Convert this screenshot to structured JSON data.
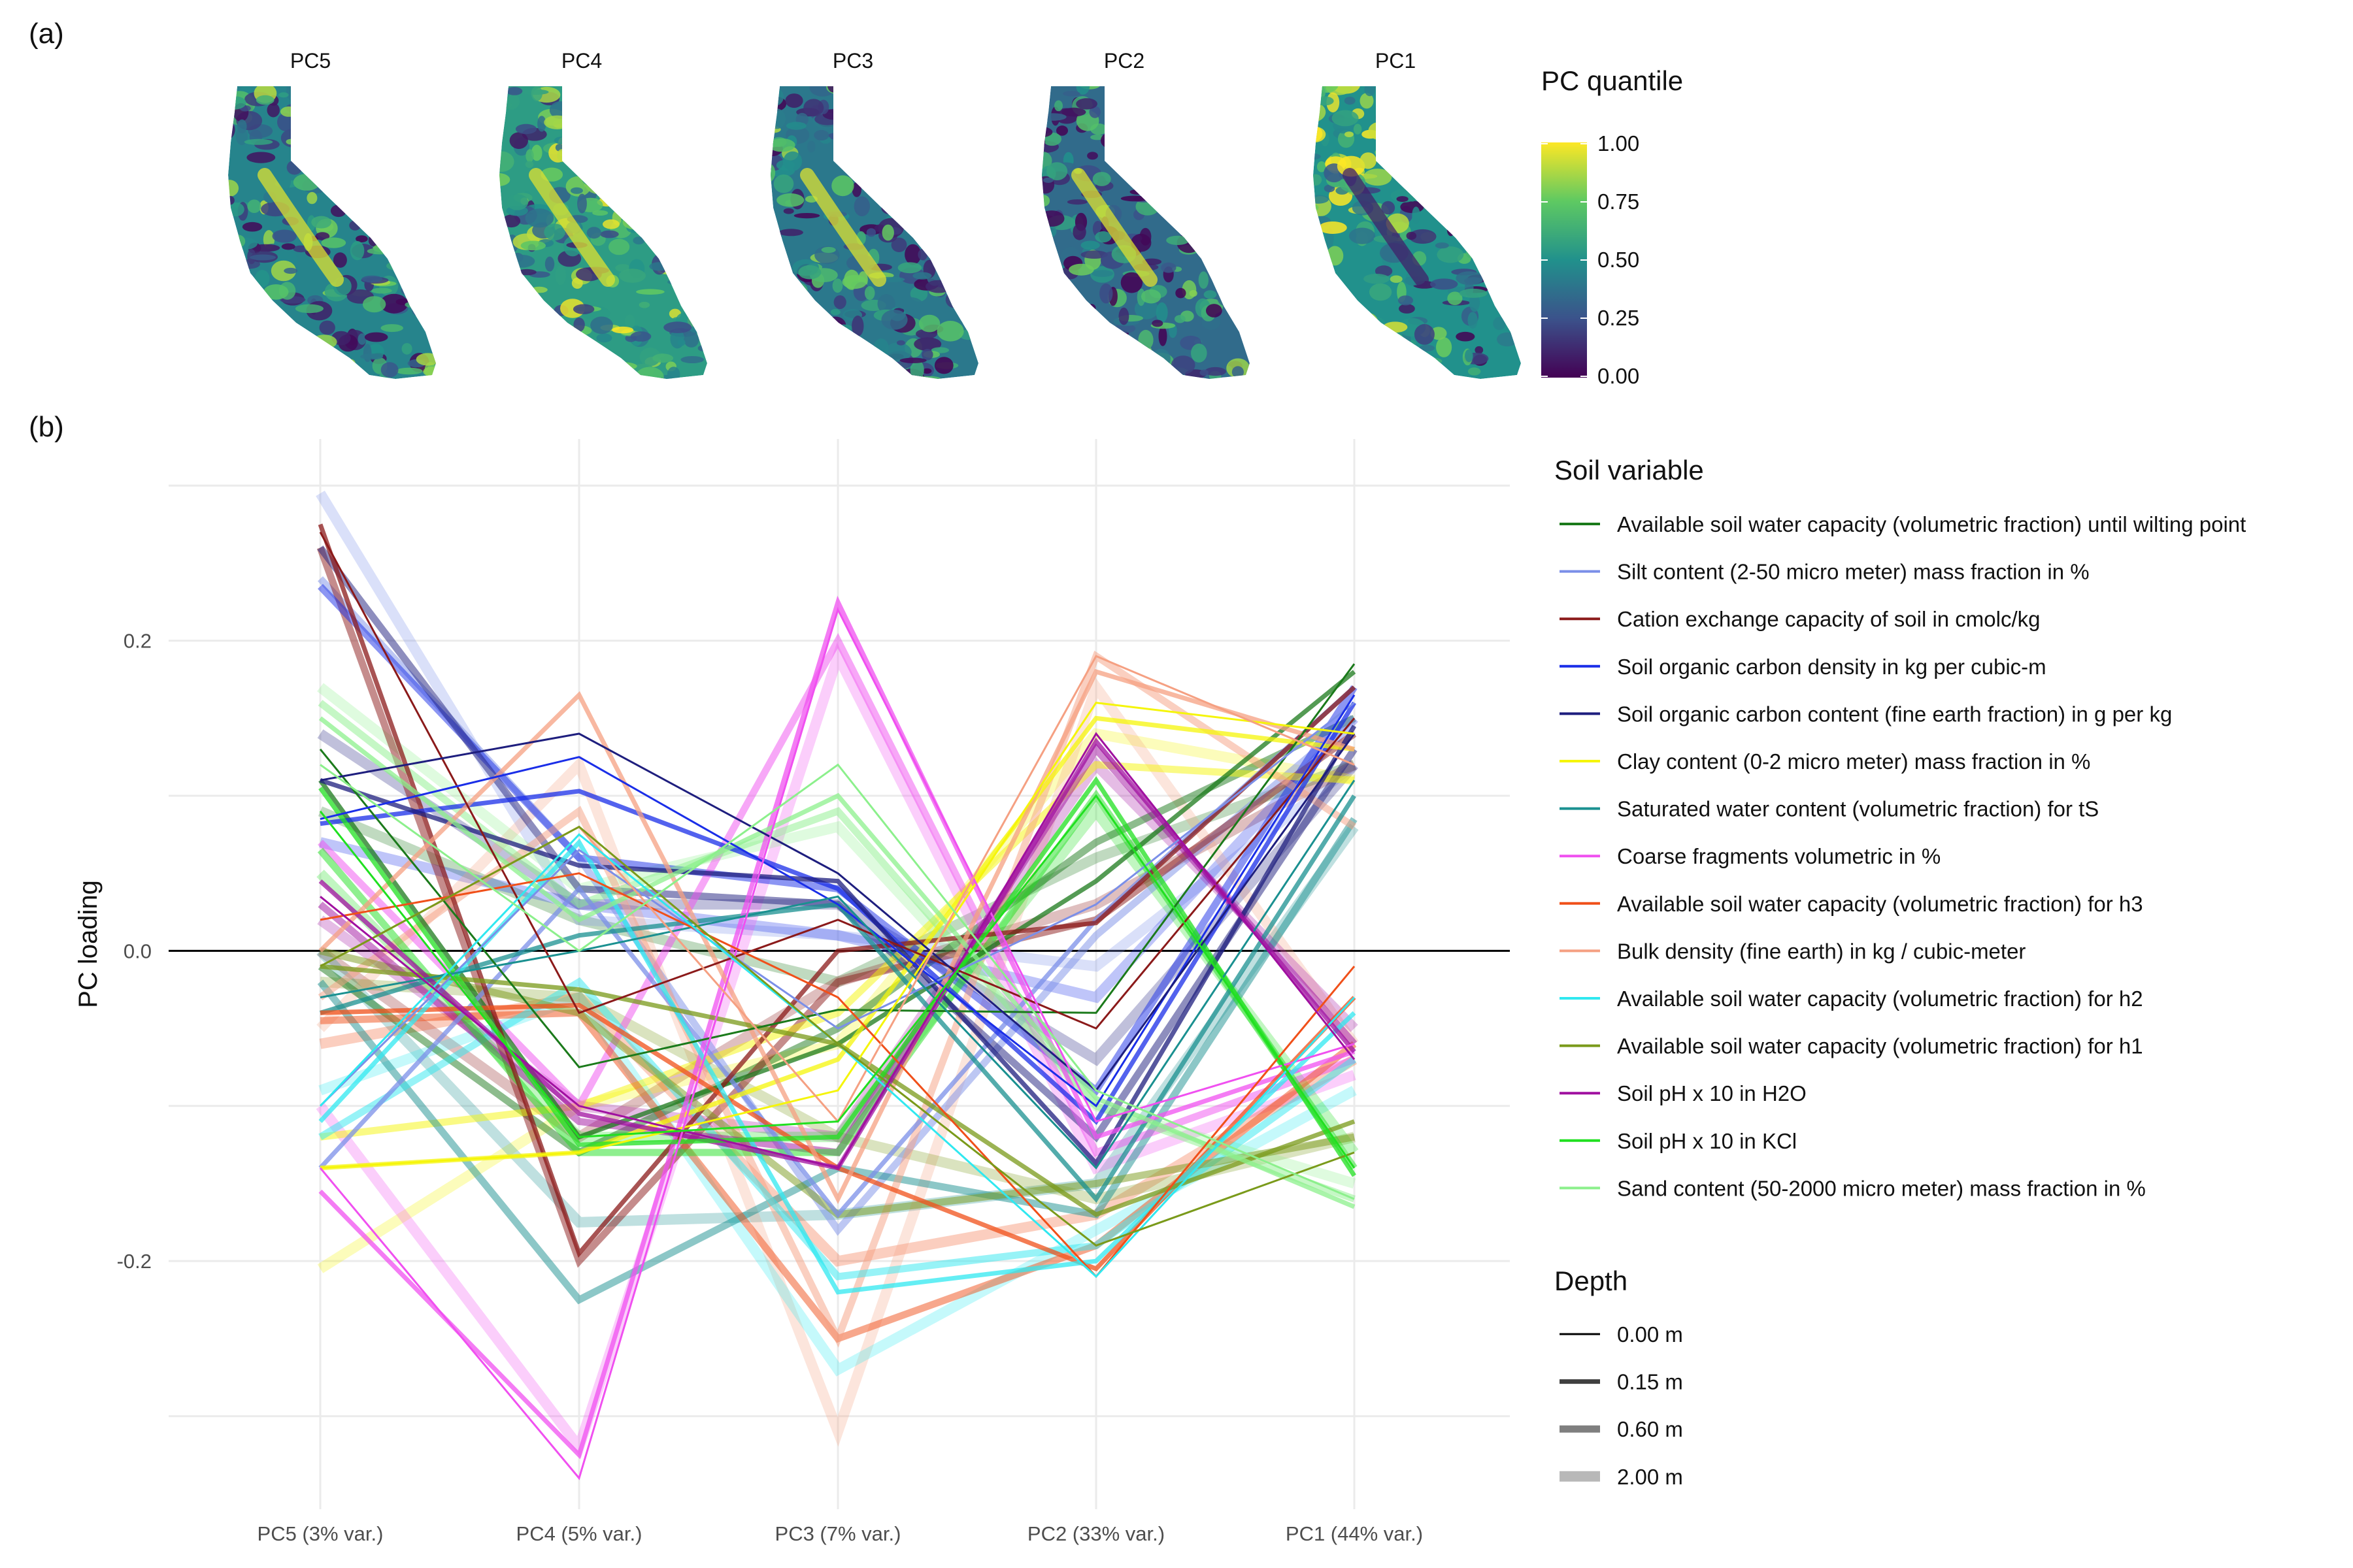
{
  "panel_labels": [
    "(a)",
    "(b)"
  ],
  "maps": {
    "panels": [
      "PC5",
      "PC4",
      "PC3",
      "PC2",
      "PC1"
    ],
    "legend": {
      "title": "PC quantile",
      "ticks": [
        "1.00",
        "0.75",
        "0.50",
        "0.25",
        "0.00"
      ],
      "colors": [
        "#fde725",
        "#5ec962",
        "#21918c",
        "#3b528b",
        "#440154"
      ]
    }
  },
  "chart_data": {
    "type": "line",
    "title": "",
    "xlabel": "",
    "ylabel": "PC loading",
    "categories": [
      "PC5 (3% var.)",
      "PC4 (5% var.)",
      "PC3 (7% var.)",
      "PC2 (33% var.)",
      "PC1 (44% var.)"
    ],
    "ylim": [
      -0.36,
      0.33
    ],
    "yticks": [
      0.2,
      0.0,
      -0.2
    ],
    "ytick_labels": [
      "0.2",
      "0.0",
      "-0.2"
    ],
    "hline": 0,
    "grid": true,
    "legend_placement": "right",
    "color_legend_title": "Soil variable",
    "depth_legend_title": "Depth",
    "variables": [
      {
        "name": "Available soil water capacity (volumetric fraction) until wilting point",
        "color": "#1b7a1b"
      },
      {
        "name": "Silt content (2-50 micro meter) mass fraction in %",
        "color": "#7b8fe8"
      },
      {
        "name": "Cation exchange capacity of soil in cmolc/kg",
        "color": "#8b1a1a"
      },
      {
        "name": "Soil organic carbon density in kg per cubic-m",
        "color": "#1a2ee8"
      },
      {
        "name": "Soil organic carbon content (fine earth fraction) in g per kg",
        "color": "#1e1e7e"
      },
      {
        "name": "Clay content (0-2 micro meter) mass fraction in %",
        "color": "#f5f50a"
      },
      {
        "name": "Saturated water content (volumetric fraction) for tS",
        "color": "#1a9090"
      },
      {
        "name": "Coarse fragments volumetric in %",
        "color": "#f050f0"
      },
      {
        "name": "Available soil water capacity (volumetric fraction) for h3",
        "color": "#f0501a"
      },
      {
        "name": "Bulk density (fine earth) in kg / cubic-meter",
        "color": "#f5a082"
      },
      {
        "name": "Available soil water capacity (volumetric fraction) for h2",
        "color": "#30e8f0"
      },
      {
        "name": "Available soil water capacity (volumetric fraction) for h1",
        "color": "#7a9a1a"
      },
      {
        "name": "Soil pH x 10 in H2O",
        "color": "#a010a0"
      },
      {
        "name": "Soil pH x 10 in KCl",
        "color": "#20e020"
      },
      {
        "name": "Sand content (50-2000 micro meter) mass fraction in %",
        "color": "#8cf08c"
      }
    ],
    "depths": [
      {
        "label": "0.00 m",
        "width": 3,
        "opacity": 1.0
      },
      {
        "label": "0.15 m",
        "width": 7,
        "opacity": 0.75
      },
      {
        "label": "0.60 m",
        "width": 11,
        "opacity": 0.5
      },
      {
        "label": "2.00 m",
        "width": 16,
        "opacity": 0.28
      }
    ],
    "series": [
      {
        "variable": 0,
        "depth": 0,
        "values": [
          0.13,
          -0.075,
          -0.038,
          -0.04,
          0.185
        ]
      },
      {
        "variable": 0,
        "depth": 1,
        "values": [
          0.11,
          -0.12,
          -0.06,
          0.045,
          0.18
        ]
      },
      {
        "variable": 0,
        "depth": 2,
        "values": [
          -0.01,
          -0.13,
          -0.05,
          0.07,
          0.15
        ]
      },
      {
        "variable": 0,
        "depth": 3,
        "values": [
          0.09,
          0.02,
          -0.02,
          0.06,
          0.12
        ]
      },
      {
        "variable": 1,
        "depth": 0,
        "values": [
          -0.1,
          0.065,
          -0.05,
          0.03,
          0.16
        ]
      },
      {
        "variable": 1,
        "depth": 1,
        "values": [
          -0.14,
          0.04,
          -0.17,
          0.02,
          0.17
        ]
      },
      {
        "variable": 1,
        "depth": 2,
        "values": [
          0.24,
          0.06,
          -0.18,
          0.01,
          0.15
        ]
      },
      {
        "variable": 1,
        "depth": 3,
        "values": [
          0.295,
          0.02,
          0.01,
          -0.01,
          0.12
        ]
      },
      {
        "variable": 2,
        "depth": 0,
        "values": [
          0.27,
          -0.04,
          0.02,
          -0.05,
          0.15
        ]
      },
      {
        "variable": 2,
        "depth": 1,
        "values": [
          0.275,
          -0.195,
          0.0,
          0.018,
          0.17
        ]
      },
      {
        "variable": 2,
        "depth": 2,
        "values": [
          0.26,
          -0.2,
          -0.02,
          0.02,
          0.14
        ]
      },
      {
        "variable": 2,
        "depth": 3,
        "values": [
          0.0,
          -0.12,
          -0.02,
          0.03,
          0.12
        ]
      },
      {
        "variable": 3,
        "depth": 0,
        "values": [
          0.085,
          0.125,
          0.03,
          -0.1,
          0.165
        ]
      },
      {
        "variable": 3,
        "depth": 1,
        "values": [
          0.082,
          0.103,
          0.04,
          -0.11,
          0.16
        ]
      },
      {
        "variable": 3,
        "depth": 2,
        "values": [
          0.235,
          0.06,
          0.04,
          -0.09,
          0.17
        ]
      },
      {
        "variable": 3,
        "depth": 3,
        "values": [
          0.07,
          0.03,
          0.01,
          -0.03,
          0.15
        ]
      },
      {
        "variable": 4,
        "depth": 0,
        "values": [
          0.11,
          0.14,
          0.05,
          -0.09,
          0.14
        ]
      },
      {
        "variable": 4,
        "depth": 1,
        "values": [
          0.11,
          0.055,
          0.045,
          -0.137,
          0.145
        ]
      },
      {
        "variable": 4,
        "depth": 2,
        "values": [
          0.26,
          0.04,
          0.03,
          -0.12,
          0.13
        ]
      },
      {
        "variable": 4,
        "depth": 3,
        "values": [
          0.14,
          0.03,
          0.03,
          -0.07,
          0.12
        ]
      },
      {
        "variable": 5,
        "depth": 0,
        "values": [
          -0.14,
          -0.13,
          -0.09,
          0.16,
          0.14
        ]
      },
      {
        "variable": 5,
        "depth": 1,
        "values": [
          -0.14,
          -0.13,
          -0.07,
          0.15,
          0.13
        ]
      },
      {
        "variable": 5,
        "depth": 2,
        "values": [
          -0.12,
          -0.1,
          -0.04,
          0.12,
          0.11
        ]
      },
      {
        "variable": 5,
        "depth": 3,
        "values": [
          -0.205,
          -0.1,
          -0.06,
          0.14,
          0.11
        ]
      },
      {
        "variable": 6,
        "depth": 0,
        "values": [
          -0.03,
          0.0,
          0.035,
          -0.14,
          0.11
        ]
      },
      {
        "variable": 6,
        "depth": 1,
        "values": [
          -0.04,
          0.01,
          0.03,
          -0.16,
          0.1
        ]
      },
      {
        "variable": 6,
        "depth": 2,
        "values": [
          -0.02,
          -0.225,
          -0.14,
          -0.17,
          0.085
        ]
      },
      {
        "variable": 6,
        "depth": 3,
        "values": [
          0.0,
          -0.175,
          -0.17,
          -0.15,
          0.08
        ]
      },
      {
        "variable": 7,
        "depth": 0,
        "values": [
          -0.14,
          -0.34,
          0.22,
          -0.11,
          -0.06
        ]
      },
      {
        "variable": 7,
        "depth": 1,
        "values": [
          -0.155,
          -0.325,
          0.225,
          -0.12,
          -0.065
        ]
      },
      {
        "variable": 7,
        "depth": 2,
        "values": [
          0.07,
          -0.1,
          0.2,
          -0.13,
          -0.07
        ]
      },
      {
        "variable": 7,
        "depth": 3,
        "values": [
          -0.1,
          -0.32,
          0.19,
          -0.14,
          -0.08
        ]
      },
      {
        "variable": 8,
        "depth": 0,
        "values": [
          0.02,
          0.05,
          -0.03,
          -0.21,
          -0.01
        ]
      },
      {
        "variable": 8,
        "depth": 1,
        "values": [
          -0.04,
          -0.035,
          -0.14,
          -0.205,
          -0.03
        ]
      },
      {
        "variable": 8,
        "depth": 2,
        "values": [
          -0.045,
          -0.04,
          -0.25,
          -0.19,
          -0.06
        ]
      },
      {
        "variable": 8,
        "depth": 3,
        "values": [
          -0.06,
          -0.03,
          -0.2,
          -0.17,
          -0.07
        ]
      },
      {
        "variable": 9,
        "depth": 0,
        "values": [
          -0.01,
          0.08,
          -0.11,
          0.19,
          0.12
        ]
      },
      {
        "variable": 9,
        "depth": 1,
        "values": [
          0.0,
          0.165,
          -0.16,
          0.18,
          0.13
        ]
      },
      {
        "variable": 9,
        "depth": 2,
        "values": [
          -0.03,
          0.09,
          -0.25,
          0.19,
          0.08
        ]
      },
      {
        "variable": 9,
        "depth": 3,
        "values": [
          -0.05,
          0.12,
          -0.31,
          0.17,
          -0.06
        ]
      },
      {
        "variable": 10,
        "depth": 0,
        "values": [
          -0.1,
          0.075,
          -0.06,
          -0.21,
          -0.03
        ]
      },
      {
        "variable": 10,
        "depth": 1,
        "values": [
          -0.11,
          0.07,
          -0.22,
          -0.2,
          -0.04
        ]
      },
      {
        "variable": 10,
        "depth": 2,
        "values": [
          -0.12,
          -0.02,
          -0.21,
          -0.19,
          -0.07
        ]
      },
      {
        "variable": 10,
        "depth": 3,
        "values": [
          -0.09,
          -0.03,
          -0.27,
          -0.18,
          -0.09
        ]
      },
      {
        "variable": 11,
        "depth": 0,
        "values": [
          -0.01,
          0.08,
          -0.06,
          -0.19,
          -0.13
        ]
      },
      {
        "variable": 11,
        "depth": 1,
        "values": [
          -0.01,
          -0.025,
          -0.06,
          -0.17,
          -0.11
        ]
      },
      {
        "variable": 11,
        "depth": 2,
        "values": [
          0.0,
          -0.04,
          -0.17,
          -0.15,
          -0.12
        ]
      },
      {
        "variable": 11,
        "depth": 3,
        "values": [
          -0.02,
          -0.03,
          -0.12,
          -0.16,
          -0.12
        ]
      },
      {
        "variable": 12,
        "depth": 0,
        "values": [
          0.035,
          -0.1,
          -0.14,
          0.14,
          -0.07
        ]
      },
      {
        "variable": 12,
        "depth": 1,
        "values": [
          0.045,
          -0.105,
          -0.14,
          0.135,
          -0.065
        ]
      },
      {
        "variable": 12,
        "depth": 2,
        "values": [
          0.03,
          -0.11,
          -0.13,
          0.13,
          -0.06
        ]
      },
      {
        "variable": 12,
        "depth": 3,
        "values": [
          0.02,
          -0.1,
          -0.12,
          0.12,
          -0.05
        ]
      },
      {
        "variable": 13,
        "depth": 0,
        "values": [
          0.09,
          -0.12,
          -0.11,
          0.1,
          -0.14
        ]
      },
      {
        "variable": 13,
        "depth": 1,
        "values": [
          0.105,
          -0.125,
          -0.12,
          0.11,
          -0.145
        ]
      },
      {
        "variable": 13,
        "depth": 2,
        "values": [
          0.065,
          -0.13,
          -0.13,
          0.1,
          -0.14
        ]
      },
      {
        "variable": 13,
        "depth": 3,
        "values": [
          0.05,
          -0.12,
          -0.12,
          0.09,
          -0.13
        ]
      },
      {
        "variable": 14,
        "depth": 0,
        "values": [
          0.12,
          0.0,
          0.12,
          -0.09,
          -0.16
        ]
      },
      {
        "variable": 14,
        "depth": 1,
        "values": [
          0.15,
          0.02,
          0.1,
          -0.095,
          -0.165
        ]
      },
      {
        "variable": 14,
        "depth": 2,
        "values": [
          0.16,
          0.03,
          0.09,
          -0.1,
          -0.16
        ]
      },
      {
        "variable": 14,
        "depth": 3,
        "values": [
          0.17,
          0.04,
          0.08,
          -0.1,
          -0.15
        ]
      }
    ]
  }
}
